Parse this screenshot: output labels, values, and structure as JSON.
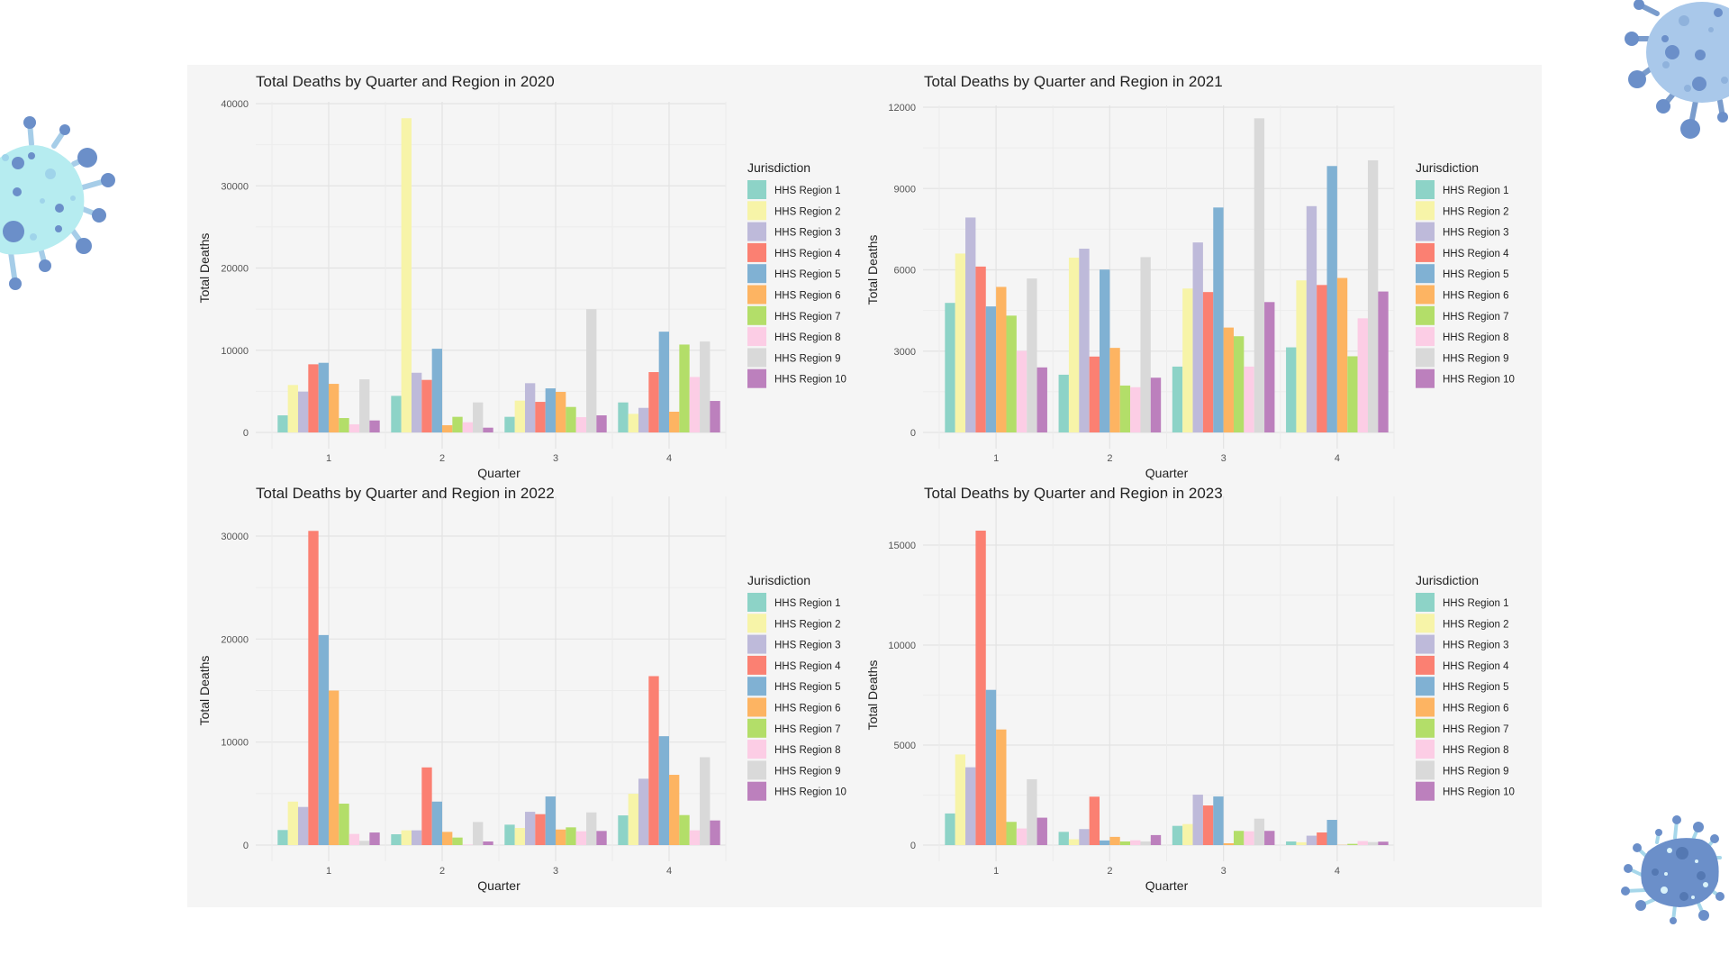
{
  "decorations": [
    "virus-icon-left",
    "virus-icon-top-right",
    "virus-icon-bottom-right"
  ],
  "regions": [
    "HHS Region 1",
    "HHS Region 2",
    "HHS Region 3",
    "HHS Region 4",
    "HHS Region 5",
    "HHS Region 6",
    "HHS Region 7",
    "HHS Region 8",
    "HHS Region 9",
    "HHS Region 10"
  ],
  "colors": [
    "#8dd3c7",
    "#f7f4a8",
    "#bebada",
    "#fb8072",
    "#80b1d3",
    "#fdb462",
    "#b3de69",
    "#fccde5",
    "#d9d9d9",
    "#bc80bd"
  ],
  "chart_data": [
    {
      "type": "bar",
      "title": "Total Deaths by Quarter and Region in 2020",
      "xlabel": "Quarter",
      "ylabel": "Total Deaths",
      "legend_title": "Jurisdiction",
      "legend_position": "right",
      "grid": true,
      "categories": [
        "1",
        "2",
        "3",
        "4"
      ],
      "ylim": [
        0,
        40000
      ],
      "yticks": [
        0,
        10000,
        20000,
        30000,
        40000
      ],
      "series": [
        {
          "name": "HHS Region 1",
          "values": [
            2080,
            4450,
            1900,
            3650
          ]
        },
        {
          "name": "HHS Region 2",
          "values": [
            5770,
            38220,
            3870,
            2260
          ]
        },
        {
          "name": "HHS Region 3",
          "values": [
            4960,
            7260,
            5990,
            2990
          ]
        },
        {
          "name": "HHS Region 4",
          "values": [
            8290,
            6390,
            3720,
            7340
          ]
        },
        {
          "name": "HHS Region 5",
          "values": [
            8470,
            10180,
            5360,
            12260
          ]
        },
        {
          "name": "HHS Region 6",
          "values": [
            5910,
            880,
            4930,
            2520
          ]
        },
        {
          "name": "HHS Region 7",
          "values": [
            1750,
            1900,
            3100,
            10690
          ]
        },
        {
          "name": "HHS Region 8",
          "values": [
            990,
            1240,
            1860,
            6750
          ]
        },
        {
          "name": "HHS Region 9",
          "values": [
            6460,
            3650,
            15000,
            11060
          ]
        },
        {
          "name": "HHS Region 10",
          "values": [
            1460,
            580,
            2080,
            3830
          ]
        }
      ]
    },
    {
      "type": "bar",
      "title": "Total Deaths by Quarter and Region in 2021",
      "xlabel": "Quarter",
      "ylabel": "Total Deaths",
      "legend_title": "Jurisdiction",
      "legend_position": "right",
      "grid": true,
      "categories": [
        "1",
        "2",
        "3",
        "4"
      ],
      "ylim": [
        0,
        12000
      ],
      "yticks": [
        0,
        3000,
        6000,
        9000,
        12000
      ],
      "series": [
        {
          "name": "HHS Region 1",
          "values": [
            4780,
            2130,
            2430,
            3140
          ]
        },
        {
          "name": "HHS Region 2",
          "values": [
            6600,
            6450,
            5310,
            5610
          ]
        },
        {
          "name": "HHS Region 3",
          "values": [
            7930,
            6780,
            7010,
            8350
          ]
        },
        {
          "name": "HHS Region 4",
          "values": [
            6120,
            2800,
            5180,
            5440
          ]
        },
        {
          "name": "HHS Region 5",
          "values": [
            4650,
            6010,
            8300,
            9830
          ]
        },
        {
          "name": "HHS Region 6",
          "values": [
            5370,
            3120,
            3870,
            5700
          ]
        },
        {
          "name": "HHS Region 7",
          "values": [
            4310,
            1730,
            3550,
            2810
          ]
        },
        {
          "name": "HHS Region 8",
          "values": [
            3010,
            1670,
            2430,
            4210
          ]
        },
        {
          "name": "HHS Region 9",
          "values": [
            5680,
            6470,
            11590,
            10040
          ]
        },
        {
          "name": "HHS Region 10",
          "values": [
            2400,
            2020,
            4810,
            5200
          ]
        }
      ]
    },
    {
      "type": "bar",
      "title": "Total Deaths by Quarter and Region in 2022",
      "xlabel": "Quarter",
      "ylabel": "Total Deaths",
      "legend_title": "Jurisdiction",
      "legend_position": "right",
      "grid": true,
      "categories": [
        "1",
        "2",
        "3",
        "4"
      ],
      "ylim": [
        0,
        30000
      ],
      "yticks": [
        0,
        10000,
        20000,
        30000
      ],
      "series": [
        {
          "name": "HHS Region 1",
          "values": [
            1460,
            1050,
            1980,
            2880
          ]
        },
        {
          "name": "HHS Region 2",
          "values": [
            4220,
            1430,
            1660,
            4980
          ]
        },
        {
          "name": "HHS Region 3",
          "values": [
            3700,
            1430,
            3230,
            6440
          ]
        },
        {
          "name": "HHS Region 4",
          "values": [
            30500,
            7540,
            3000,
            16400
          ]
        },
        {
          "name": "HHS Region 5",
          "values": [
            20390,
            4220,
            4720,
            10570
          ]
        },
        {
          "name": "HHS Region 6",
          "values": [
            15000,
            1280,
            1510,
            6820
          ]
        },
        {
          "name": "HHS Region 7",
          "values": [
            4020,
            730,
            1720,
            2910
          ]
        },
        {
          "name": "HHS Region 8",
          "values": [
            1080,
            50,
            1340,
            1430
          ]
        },
        {
          "name": "HHS Region 9",
          "values": [
            410,
            2240,
            3170,
            8530
          ]
        },
        {
          "name": "HHS Region 10",
          "values": [
            1220,
            350,
            1370,
            2390
          ]
        }
      ]
    },
    {
      "type": "bar",
      "title": "Total Deaths by Quarter and Region in 2023",
      "xlabel": "Quarter",
      "ylabel": "Total Deaths",
      "legend_title": "Jurisdiction",
      "legend_position": "right",
      "grid": true,
      "categories": [
        "1",
        "2",
        "3",
        "4"
      ],
      "ylim": [
        0,
        15000
      ],
      "yticks": [
        0,
        5000,
        10000,
        15000
      ],
      "series": [
        {
          "name": "HHS Region 1",
          "values": [
            1580,
            660,
            960,
            180
          ]
        },
        {
          "name": "HHS Region 2",
          "values": [
            4530,
            290,
            1050,
            140
          ]
        },
        {
          "name": "HHS Region 3",
          "values": [
            3890,
            800,
            2520,
            470
          ]
        },
        {
          "name": "HHS Region 4",
          "values": [
            15720,
            2420,
            1980,
            630
          ]
        },
        {
          "name": "HHS Region 5",
          "values": [
            7760,
            230,
            2430,
            1260
          ]
        },
        {
          "name": "HHS Region 6",
          "values": [
            5780,
            410,
            90,
            10
          ]
        },
        {
          "name": "HHS Region 7",
          "values": [
            1160,
            180,
            710,
            60
          ]
        },
        {
          "name": "HHS Region 8",
          "values": [
            830,
            240,
            690,
            200
          ]
        },
        {
          "name": "HHS Region 9",
          "values": [
            3290,
            180,
            1320,
            150
          ]
        },
        {
          "name": "HHS Region 10",
          "values": [
            1370,
            500,
            710,
            170
          ]
        }
      ]
    }
  ]
}
